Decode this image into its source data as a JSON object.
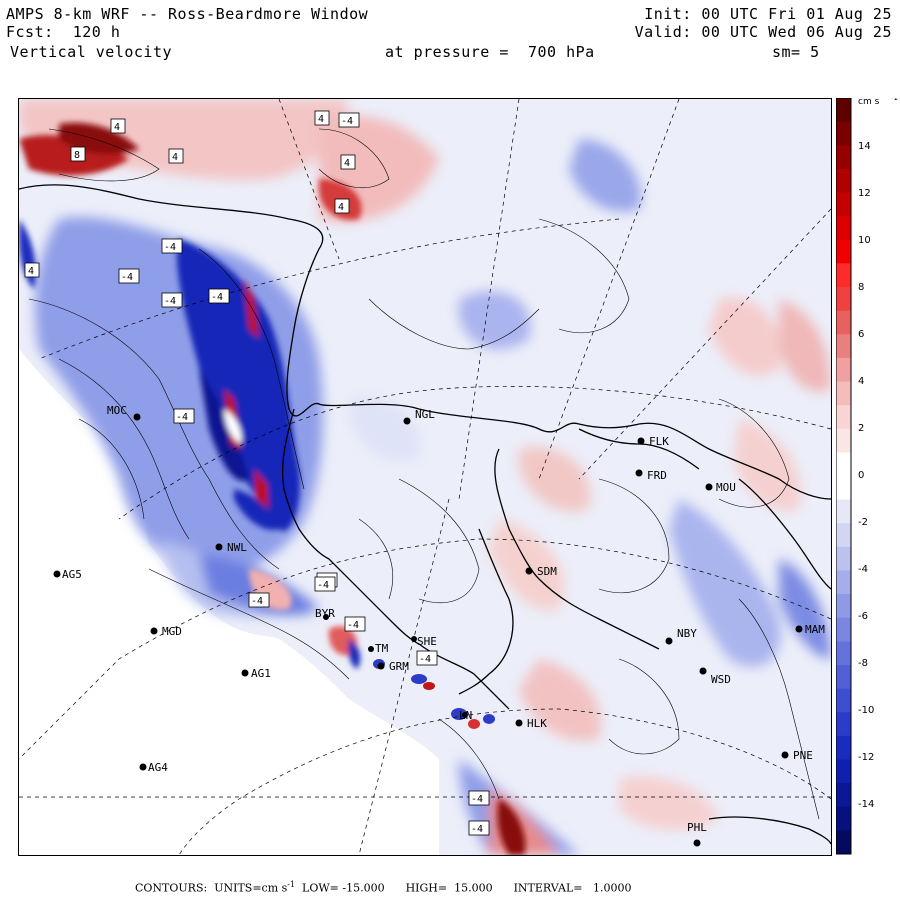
{
  "header": {
    "line1_left": "AMPS 8-km WRF -- Ross-Beardmore Window",
    "line2_left": "Fcst:  120 h",
    "line3_left": "Vertical velocity",
    "line1_right": "Init: 00 UTC Fri 01 Aug 25",
    "line2_right": "Valid: 00 UTC Wed 06 Aug 25",
    "line3_mid": "at pressure =  700 hPa",
    "line3_right": "sm= 5"
  },
  "stations": [
    {
      "id": "MOC",
      "label": "MOC"
    },
    {
      "id": "NGL",
      "label": "NGL"
    },
    {
      "id": "FLK",
      "label": "FLK"
    },
    {
      "id": "FRD",
      "label": "FRD"
    },
    {
      "id": "MOU",
      "label": "MOU"
    },
    {
      "id": "NWL",
      "label": "NWL"
    },
    {
      "id": "AG5",
      "label": "AG5"
    },
    {
      "id": "SDM",
      "label": "SDM"
    },
    {
      "id": "MGD",
      "label": "MGD"
    },
    {
      "id": "NBY",
      "label": "NBY"
    },
    {
      "id": "AG1",
      "label": "AG1"
    },
    {
      "id": "GRM",
      "label": "GRM"
    },
    {
      "id": "TM",
      "label": "TM"
    },
    {
      "id": "SHE",
      "label": "SHE"
    },
    {
      "id": "WSD",
      "label": "WSD"
    },
    {
      "id": "HLK",
      "label": "HLK"
    },
    {
      "id": "LN",
      "label": "LN"
    },
    {
      "id": "PNE",
      "label": "PNE"
    },
    {
      "id": "AG4",
      "label": "AG4"
    },
    {
      "id": "PHL",
      "label": "PHL"
    },
    {
      "id": "MAM",
      "label": "MAM"
    },
    {
      "id": "BYR",
      "label": "BYR"
    }
  ],
  "contour_labels": [
    "4",
    "4",
    "4",
    "8",
    "4",
    "4",
    "4",
    "-4",
    "-4",
    "-4",
    "-4",
    "-4",
    "-4",
    "-4",
    "-4",
    "-4",
    "-4",
    "-4",
    "-4",
    "-4"
  ],
  "colorbar": {
    "unit": "cm s",
    "unit_exp": "-1",
    "ticks": [
      "14",
      "12",
      "10",
      "8",
      "6",
      "4",
      "2",
      "0",
      "-2",
      "-4",
      "-6",
      "-8",
      "-10",
      "-12",
      "-14"
    ]
  },
  "footer": {
    "contours_label": "CONTOURS:  UNITS=cm s",
    "units_exp": "-1",
    "rest": "  LOW= -15.000      HIGH=  15.000      INTERVAL=   1.0000"
  }
}
